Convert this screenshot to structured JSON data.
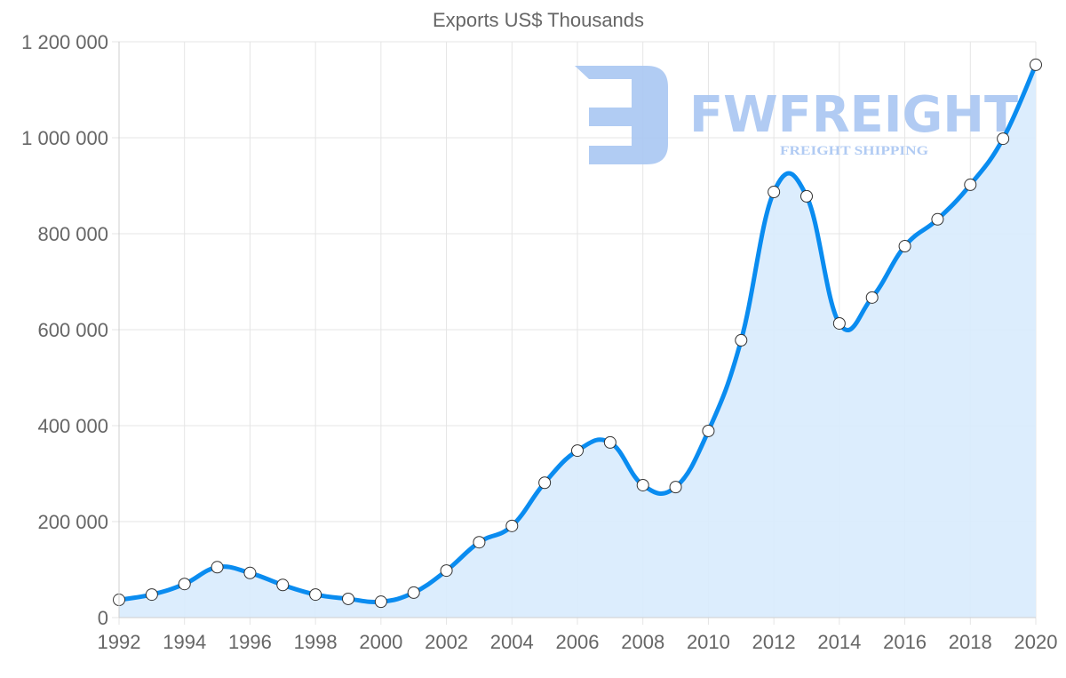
{
  "chart_data": {
    "type": "line",
    "title": "Exports US$ Thousands",
    "xlabel": "",
    "ylabel": "",
    "x": [
      1992,
      1993,
      1994,
      1995,
      1996,
      1997,
      1998,
      1999,
      2000,
      2001,
      2002,
      2003,
      2004,
      2005,
      2006,
      2007,
      2008,
      2009,
      2010,
      2011,
      2012,
      2013,
      2014,
      2015,
      2016,
      2017,
      2018,
      2019,
      2020
    ],
    "series": [
      {
        "name": "Exports US$ Thousands",
        "color": "#0a8cf0",
        "fill": "#d8ebfd",
        "values": [
          37000,
          48000,
          70000,
          105000,
          93000,
          68000,
          48000,
          39000,
          33000,
          52000,
          98000,
          157000,
          191000,
          281000,
          348000,
          365000,
          276000,
          272000,
          389000,
          578000,
          887000,
          878000,
          613000,
          667000,
          774000,
          830000,
          902000,
          998000,
          1152000
        ]
      }
    ],
    "xticks": [
      "1992",
      "1994",
      "1996",
      "1998",
      "2000",
      "2002",
      "2004",
      "2006",
      "2008",
      "2010",
      "2012",
      "2014",
      "2016",
      "2018",
      "2020"
    ],
    "yticks": [
      "0",
      "200 000",
      "400 000",
      "600 000",
      "800 000",
      "1 000 000",
      "1 200 000"
    ],
    "ylim": [
      0,
      1200000
    ],
    "xlim": [
      1992,
      2020
    ],
    "grid": true,
    "legend": "none"
  },
  "watermark": {
    "name": "FWFREIGHT",
    "tagline": "FREIGHT SHIPPING",
    "color": "#a9c6f2"
  }
}
